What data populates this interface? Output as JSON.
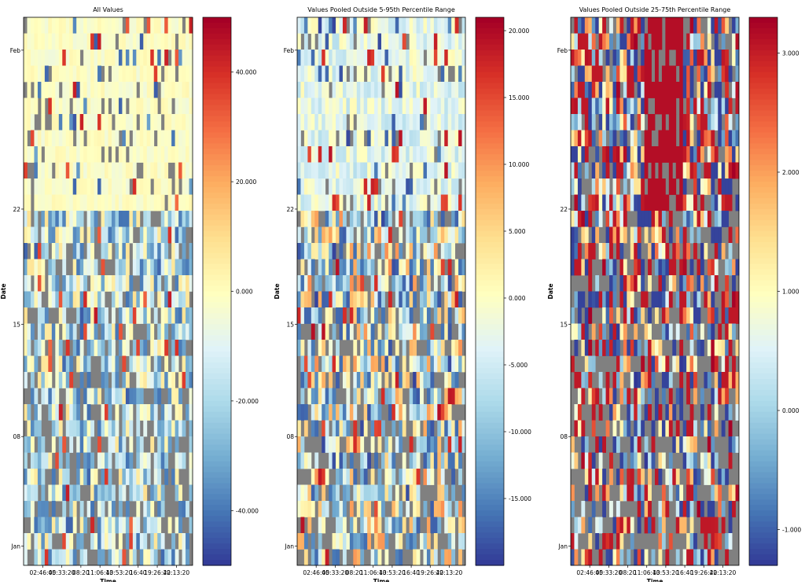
{
  "chart_data": [
    {
      "type": "heatmap",
      "title": "All Values",
      "xlabel": "Time",
      "ylabel": "Date",
      "x_tick_labels": [
        "02:46:40",
        "05:33:20",
        "08:20",
        "11:06:40",
        "13:53:20",
        "16:40",
        "19:26:40",
        "22:13:20"
      ],
      "y_tick_labels": [
        "Feb",
        "22",
        "15",
        "08",
        "Jan"
      ],
      "colorbar_ticks": [
        "40.000",
        "20.000",
        "0.000",
        "-20.000",
        "-40.000"
      ],
      "colorbar_range": [
        -50,
        50
      ],
      "colormap": "RdYlBu_r",
      "missing_color": "#808080",
      "rows": 34,
      "columns": 48
    },
    {
      "type": "heatmap",
      "title": "Values Pooled Outside 5-95th Percentile Range",
      "xlabel": "Time",
      "ylabel": "Date",
      "x_tick_labels": [
        "02:46:40",
        "05:33:20",
        "08:20",
        "11:06:40",
        "13:53:20",
        "16:40",
        "19:26:40",
        "22:13:20"
      ],
      "y_tick_labels": [
        "Feb",
        "22",
        "15",
        "08",
        "Jan"
      ],
      "colorbar_ticks": [
        "20.000",
        "15.000",
        "10.000",
        "5.000",
        "0.000",
        "-5.000",
        "-10.000",
        "-15.000"
      ],
      "colorbar_range": [
        -20,
        21
      ],
      "colormap": "RdYlBu_r",
      "missing_color": "#808080",
      "rows": 34,
      "columns": 48
    },
    {
      "type": "heatmap",
      "title": "Values Pooled Outside 25-75th Percentile Range",
      "xlabel": "Time",
      "ylabel": "Date",
      "x_tick_labels": [
        "02:46:40",
        "05:33:20",
        "08:20",
        "11:06:40",
        "13:53:20",
        "16:40",
        "19:26:40",
        "22:13:20"
      ],
      "y_tick_labels": [
        "Feb",
        "22",
        "15",
        "08",
        "Jan"
      ],
      "colorbar_ticks": [
        "3.000",
        "2.000",
        "1.000",
        "0.000",
        "-1.000"
      ],
      "colorbar_range": [
        -1.3,
        3.3
      ],
      "colormap": "RdYlBu_r",
      "missing_color": "#808080",
      "rows": 34,
      "columns": 48
    }
  ]
}
